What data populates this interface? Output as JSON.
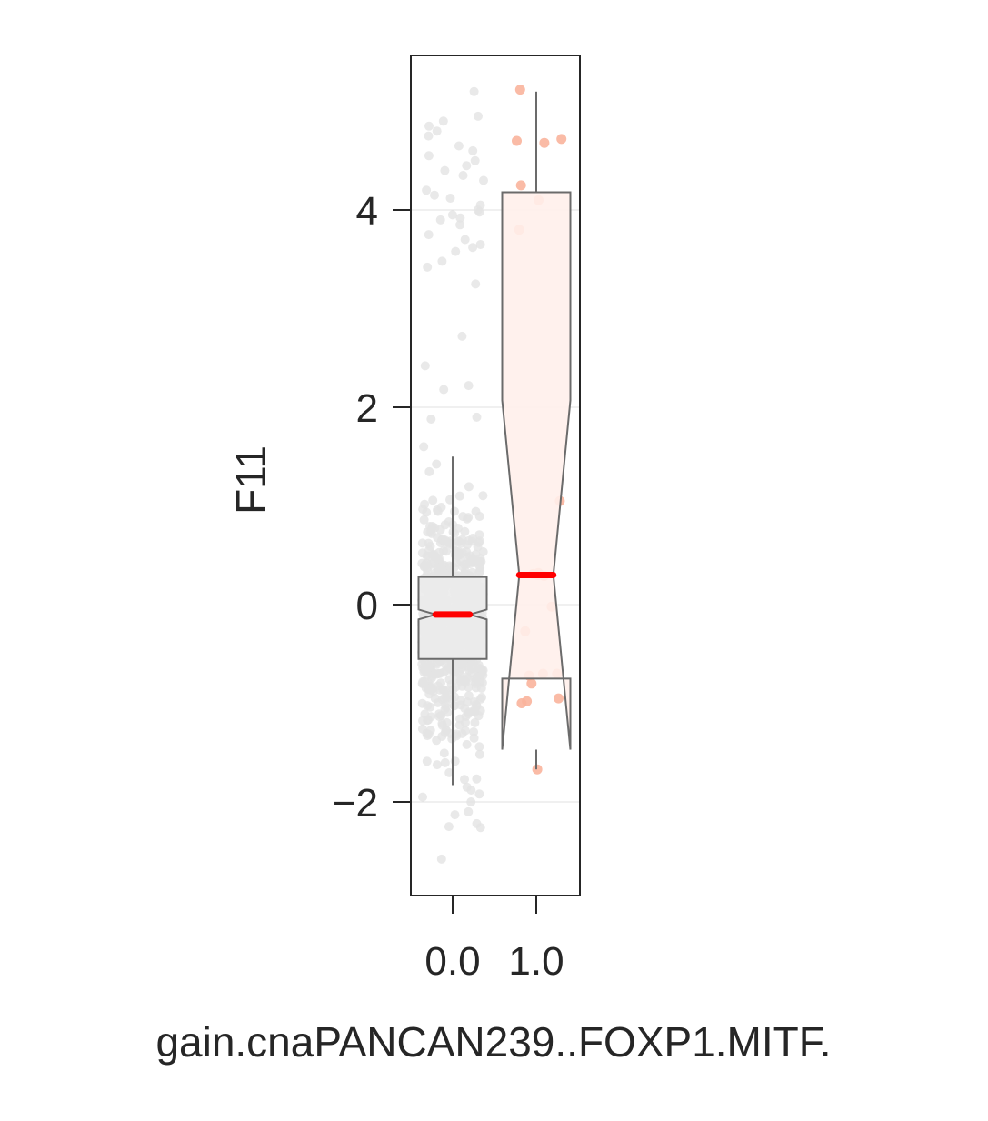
{
  "chart_data": {
    "type": "box",
    "xlabel": "gain.cnaPANCAN239..FOXP1.MITF.",
    "ylabel": "F11",
    "categories": [
      "0.0",
      "1.0"
    ],
    "y_ticks": [
      -2,
      0,
      2,
      4
    ],
    "y_tick_labels": [
      "−2",
      "0",
      "2",
      "4"
    ],
    "ylim": [
      -2.95,
      5.55
    ],
    "grid": "horizontal",
    "notched": true,
    "median_color": "#ff0000",
    "groups": [
      {
        "category": "0.0",
        "box_fill": "#ebebeb",
        "point_color": "#e4e4e4",
        "median": -0.1,
        "q1": -0.55,
        "q3": 0.28,
        "notch_low": -0.15,
        "notch_high": -0.05,
        "whisker_low": -1.83,
        "whisker_high": 1.5,
        "n_points": 720,
        "outliers": [
          5.2,
          4.95,
          4.9,
          4.85,
          4.8,
          4.75,
          4.65,
          4.6,
          4.55,
          4.5,
          4.45,
          4.4,
          4.35,
          4.3,
          4.2,
          4.15,
          4.12,
          4.05,
          4.0,
          3.98,
          3.95,
          3.92,
          3.9,
          3.85,
          3.75,
          3.7,
          3.65,
          3.62,
          3.58,
          3.48,
          3.42,
          3.25,
          2.72,
          2.42,
          2.22,
          2.18,
          1.9,
          1.88,
          1.6,
          -1.85,
          -1.88,
          -1.92,
          -1.95,
          -2.0,
          -2.1,
          -2.13,
          -2.22,
          -2.25,
          -2.26,
          -2.58
        ]
      },
      {
        "category": "1.0",
        "box_fill": "#fff0eb",
        "point_color": "#f9b49c",
        "median": 0.3,
        "q1": -0.75,
        "q3": 4.18,
        "notch_low": -1.47,
        "notch_high": 2.07,
        "whisker_low": -1.67,
        "whisker_high": 5.2,
        "points": [
          5.22,
          4.72,
          4.7,
          4.68,
          4.25,
          4.1,
          3.8,
          1.05,
          0.32,
          0.31,
          0.3,
          0.29,
          -0.02,
          -0.27,
          -0.7,
          -0.7,
          -0.72,
          -0.8,
          -0.95,
          -0.98,
          -1.0,
          -1.67
        ]
      }
    ]
  }
}
